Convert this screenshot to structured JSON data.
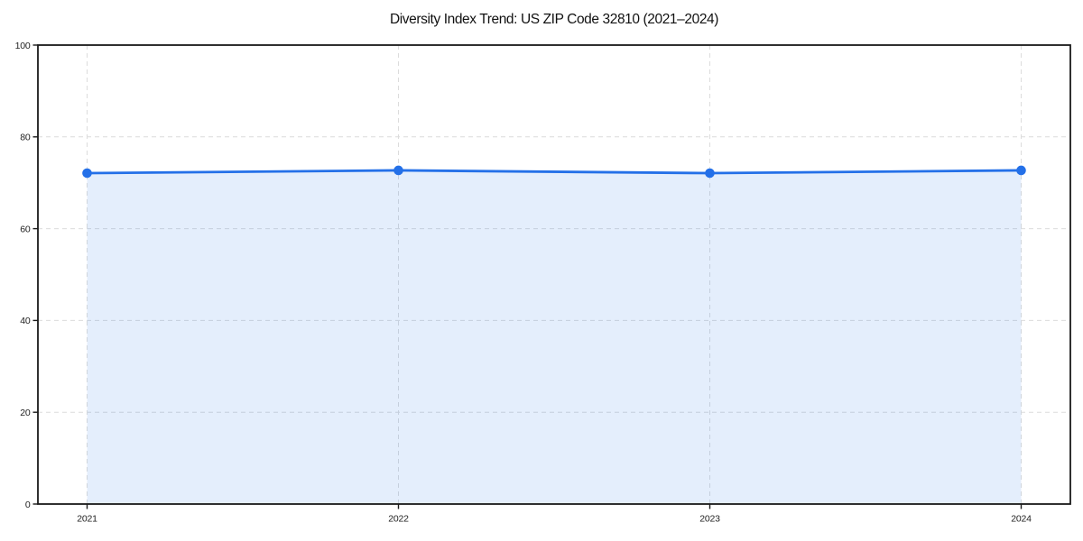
{
  "page": {
    "background": "#FFFFFF"
  },
  "chart_data": {
    "type": "line",
    "title": "Diversity Index Trend: US ZIP Code 32810 (2021–2024)",
    "x": [
      2021,
      2022,
      2023,
      2024
    ],
    "series": [
      {
        "name": "Diversity Index",
        "values": [
          72.1,
          72.7,
          72.1,
          72.7
        ]
      }
    ],
    "xlabel": "",
    "ylabel": "",
    "ylim": [
      0,
      100
    ],
    "yticks": [
      0,
      20,
      40,
      60,
      80,
      100
    ],
    "xticks": [
      2021,
      2022,
      2023,
      2024
    ],
    "grid": true,
    "grid_style": "dashed",
    "legend": "none",
    "area_fill": true,
    "fill_spans_data_only": true,
    "colors": {
      "line": "#2470E8",
      "marker": "#2470E8",
      "fill": "#2470E8",
      "fill_opacity": 0.12,
      "gridline": "#DCDCDC",
      "spine": "#1A1A1A",
      "tick_label": "#222222",
      "title": "#111111",
      "background": "#FFFFFF"
    }
  }
}
